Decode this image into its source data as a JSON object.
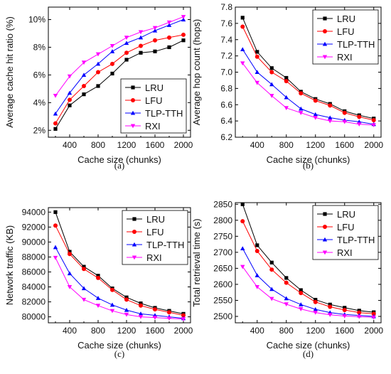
{
  "colors": {
    "LRU": "#000000",
    "LFU": "#ff0000",
    "TLP-TTH": "#0000ff",
    "RXI": "#ff00ff"
  },
  "chart_data": [
    {
      "type": "line",
      "caption": "(a)",
      "xlabel": "Cache size (chunks)",
      "ylabel": "Average cache hit ratio (%)",
      "x": [
        200,
        400,
        600,
        800,
        1000,
        1200,
        1400,
        1600,
        1800,
        2000
      ],
      "xlim": [
        100,
        2100
      ],
      "ylim": [
        1.5,
        10.9
      ],
      "xticks": [
        400,
        800,
        1200,
        1600,
        2000
      ],
      "yticks": [
        2,
        4,
        6,
        8,
        10
      ],
      "ytick_labels": [
        "2%",
        "4%",
        "6%",
        "8%",
        "10%"
      ],
      "legend_position": "bottom-right",
      "series": [
        {
          "name": "LRU",
          "values": [
            2.1,
            3.8,
            4.6,
            5.2,
            6.1,
            7.1,
            7.6,
            7.7,
            8.0,
            8.5
          ]
        },
        {
          "name": "LFU",
          "values": [
            2.5,
            4.2,
            5.2,
            6.2,
            6.8,
            7.6,
            8.1,
            8.5,
            8.7,
            8.9
          ]
        },
        {
          "name": "TLP-TTH",
          "values": [
            3.2,
            4.7,
            6.0,
            6.8,
            7.7,
            8.3,
            8.7,
            9.2,
            9.6,
            10.0
          ]
        },
        {
          "name": "RXI",
          "values": [
            4.5,
            5.9,
            6.9,
            7.5,
            8.1,
            8.7,
            9.1,
            9.4,
            9.8,
            10.2
          ]
        }
      ]
    },
    {
      "type": "line",
      "caption": "(b)",
      "xlabel": "Cache size (chunks)",
      "ylabel": "Average hop count (hops)",
      "x": [
        200,
        400,
        600,
        800,
        1000,
        1200,
        1400,
        1600,
        1800,
        2000
      ],
      "xlim": [
        100,
        2100
      ],
      "ylim": [
        6.2,
        7.8
      ],
      "xticks": [
        400,
        800,
        1200,
        1600,
        2000
      ],
      "yticks": [
        6.2,
        6.4,
        6.6,
        6.8,
        7.0,
        7.2,
        7.4,
        7.6,
        7.8
      ],
      "ytick_labels": [
        "6.2",
        "6.4",
        "6.6",
        "6.8",
        "7.0",
        "7.2",
        "7.4",
        "7.6",
        "7.8"
      ],
      "legend_position": "top-right",
      "series": [
        {
          "name": "LRU",
          "values": [
            7.67,
            7.25,
            7.05,
            6.93,
            6.76,
            6.67,
            6.61,
            6.52,
            6.47,
            6.43
          ]
        },
        {
          "name": "LFU",
          "values": [
            7.56,
            7.19,
            7.0,
            6.89,
            6.74,
            6.65,
            6.59,
            6.5,
            6.45,
            6.41
          ]
        },
        {
          "name": "TLP-TTH",
          "values": [
            7.28,
            7.0,
            6.85,
            6.69,
            6.55,
            6.48,
            6.44,
            6.41,
            6.39,
            6.36
          ]
        },
        {
          "name": "RXI",
          "values": [
            7.11,
            6.87,
            6.71,
            6.56,
            6.5,
            6.44,
            6.4,
            6.39,
            6.36,
            6.35
          ]
        }
      ]
    },
    {
      "type": "line",
      "caption": "(c)",
      "xlabel": "Cache size (chunks)",
      "ylabel": "Network traffic (KB)",
      "x": [
        200,
        400,
        600,
        800,
        1000,
        1200,
        1400,
        1600,
        1800,
        2000
      ],
      "xlim": [
        100,
        2100
      ],
      "ylim": [
        79200,
        94600
      ],
      "xticks": [
        400,
        800,
        1200,
        1600,
        2000
      ],
      "yticks": [
        80000,
        82000,
        84000,
        86000,
        88000,
        90000,
        92000,
        94000
      ],
      "ytick_labels": [
        "80000",
        "82000",
        "84000",
        "86000",
        "88000",
        "90000",
        "92000",
        "94000"
      ],
      "legend_position": "top-right",
      "series": [
        {
          "name": "LRU",
          "values": [
            94000,
            88700,
            86700,
            85500,
            83800,
            82600,
            81800,
            81200,
            80800,
            80400
          ]
        },
        {
          "name": "LFU",
          "values": [
            92200,
            88400,
            86400,
            85200,
            83600,
            82300,
            81500,
            81000,
            80600,
            80200
          ]
        },
        {
          "name": "TLP-TTH",
          "values": [
            89300,
            85800,
            83800,
            82500,
            81600,
            80900,
            80400,
            80200,
            80000,
            79800
          ]
        },
        {
          "name": "RXI",
          "values": [
            87900,
            84000,
            82300,
            81500,
            80800,
            80300,
            80000,
            79900,
            79800,
            79700
          ]
        }
      ]
    },
    {
      "type": "line",
      "caption": "(d)",
      "xlabel": "Cache size (chunks)",
      "ylabel": "Total retrieval time (s)",
      "x": [
        200,
        400,
        600,
        800,
        1000,
        1200,
        1400,
        1600,
        1800,
        2000
      ],
      "xlim": [
        100,
        2100
      ],
      "ylim": [
        2480,
        2855
      ],
      "xticks": [
        400,
        800,
        1200,
        1600,
        2000
      ],
      "yticks": [
        2500,
        2550,
        2600,
        2650,
        2700,
        2750,
        2800,
        2850
      ],
      "ytick_labels": [
        "2500",
        "2550",
        "2600",
        "2650",
        "2700",
        "2750",
        "2800",
        "2850"
      ],
      "legend_position": "top-right",
      "series": [
        {
          "name": "LRU",
          "values": [
            2850,
            2722,
            2668,
            2620,
            2582,
            2552,
            2537,
            2527,
            2518,
            2513
          ]
        },
        {
          "name": "LFU",
          "values": [
            2797,
            2704,
            2646,
            2605,
            2573,
            2545,
            2530,
            2520,
            2512,
            2508
          ]
        },
        {
          "name": "TLP-TTH",
          "values": [
            2712,
            2628,
            2585,
            2556,
            2537,
            2522,
            2512,
            2506,
            2503,
            2500
          ]
        },
        {
          "name": "RXI",
          "values": [
            2655,
            2592,
            2555,
            2538,
            2523,
            2512,
            2505,
            2501,
            2499,
            2497
          ]
        }
      ]
    }
  ]
}
